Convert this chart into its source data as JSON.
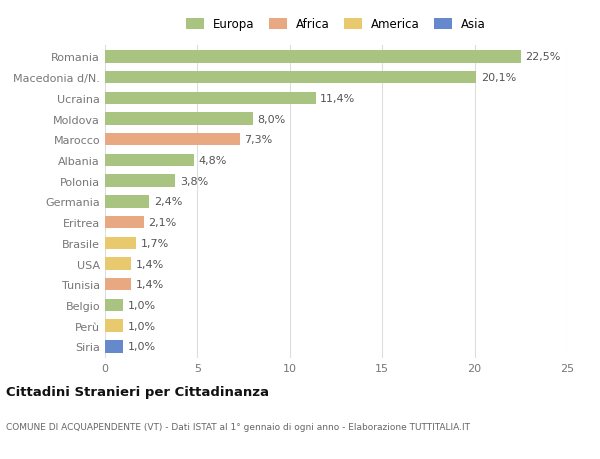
{
  "countries": [
    "Romania",
    "Macedonia d/N.",
    "Ucraina",
    "Moldova",
    "Marocco",
    "Albania",
    "Polonia",
    "Germania",
    "Eritrea",
    "Brasile",
    "USA",
    "Tunisia",
    "Belgio",
    "Perù",
    "Siria"
  ],
  "values": [
    22.5,
    20.1,
    11.4,
    8.0,
    7.3,
    4.8,
    3.8,
    2.4,
    2.1,
    1.7,
    1.4,
    1.4,
    1.0,
    1.0,
    1.0
  ],
  "labels": [
    "22,5%",
    "20,1%",
    "11,4%",
    "8,0%",
    "7,3%",
    "4,8%",
    "3,8%",
    "2,4%",
    "2,1%",
    "1,7%",
    "1,4%",
    "1,4%",
    "1,0%",
    "1,0%",
    "1,0%"
  ],
  "continents": [
    "Europa",
    "Europa",
    "Europa",
    "Europa",
    "Africa",
    "Europa",
    "Europa",
    "Europa",
    "Africa",
    "America",
    "America",
    "Africa",
    "Europa",
    "America",
    "Asia"
  ],
  "colors": {
    "Europa": "#a8c480",
    "Africa": "#e8a882",
    "America": "#e8c96e",
    "Asia": "#6688cc"
  },
  "title": "Cittadini Stranieri per Cittadinanza",
  "subtitle": "COMUNE DI ACQUAPENDENTE (VT) - Dati ISTAT al 1° gennaio di ogni anno - Elaborazione TUTTITALIA.IT",
  "xlim": [
    0,
    25
  ],
  "xticks": [
    0,
    5,
    10,
    15,
    20,
    25
  ],
  "background_color": "#ffffff",
  "grid_color": "#dddddd",
  "bar_height": 0.6,
  "label_fontsize": 8,
  "tick_fontsize": 8,
  "legend_order": [
    "Europa",
    "Africa",
    "America",
    "Asia"
  ]
}
